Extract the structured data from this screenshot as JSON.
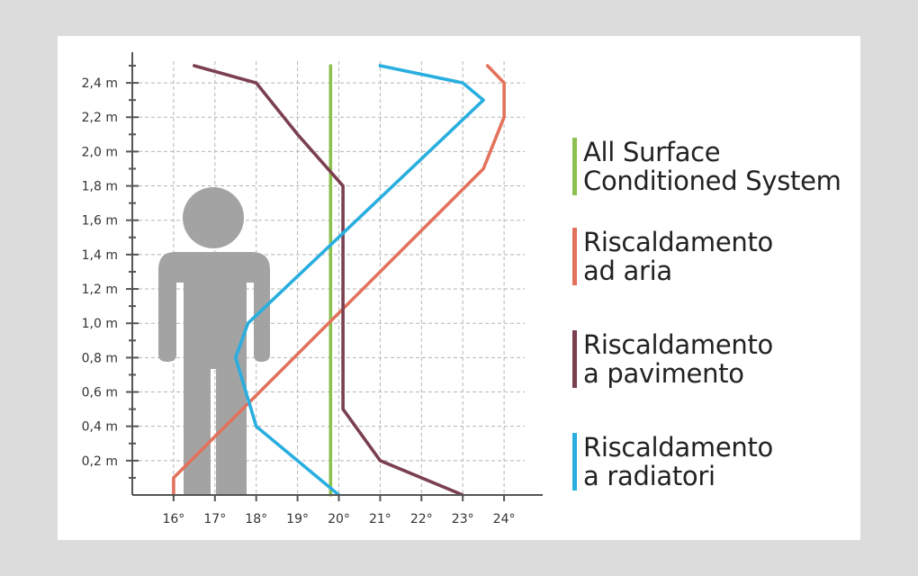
{
  "chart_data": {
    "type": "line",
    "title": "",
    "xlabel": "",
    "ylabel": "",
    "xlim": [
      15.0,
      24.5
    ],
    "ylim": [
      0,
      2.5
    ],
    "x_ticks": [
      16,
      17,
      18,
      19,
      20,
      21,
      22,
      23,
      24
    ],
    "x_tick_labels": [
      "16°",
      "17°",
      "18°",
      "19°",
      "20°",
      "21°",
      "22°",
      "23°",
      "24°"
    ],
    "y_ticks": [
      0.2,
      0.4,
      0.6,
      0.8,
      1.0,
      1.2,
      1.4,
      1.6,
      1.8,
      2.0,
      2.2,
      2.4
    ],
    "y_tick_labels": [
      "0,2 m",
      "0,4 m",
      "0,6 m",
      "0,8 m",
      "1,0 m",
      "1,2 m",
      "1,4 m",
      "1,6 m",
      "1,8 m",
      "2,0 m",
      "2,2 m",
      "2,4 m"
    ],
    "grid": true,
    "legend_position": "right",
    "series": [
      {
        "name": "All Surface\nConditioned System",
        "color": "#8dc14f",
        "points": [
          [
            19.8,
            0.0
          ],
          [
            19.8,
            2.5
          ]
        ]
      },
      {
        "name": "Riscaldamento\nad aria",
        "color": "#e2725b",
        "points": [
          [
            16.0,
            0.0
          ],
          [
            16.0,
            0.1
          ],
          [
            23.5,
            1.9
          ],
          [
            24.0,
            2.2
          ],
          [
            24.0,
            2.4
          ],
          [
            23.6,
            2.5
          ]
        ]
      },
      {
        "name": "Riscaldamento\na pavimento",
        "color": "#7b4050",
        "points": [
          [
            23.0,
            0.0
          ],
          [
            21.0,
            0.2
          ],
          [
            20.1,
            0.5
          ],
          [
            20.1,
            1.8
          ],
          [
            19.0,
            2.1
          ],
          [
            18.0,
            2.4
          ],
          [
            16.5,
            2.5
          ]
        ]
      },
      {
        "name": "Riscaldamento\na radiatori",
        "color": "#29aee0",
        "points": [
          [
            20.0,
            0.0
          ],
          [
            18.0,
            0.4
          ],
          [
            17.5,
            0.8
          ],
          [
            17.8,
            1.0
          ],
          [
            23.5,
            2.3
          ],
          [
            23.0,
            2.4
          ],
          [
            21.0,
            2.5
          ]
        ]
      }
    ]
  },
  "figure": {
    "body_color": "#a3a3a3",
    "axis_color": "#555555",
    "grid_color": "#b5b5b5"
  }
}
